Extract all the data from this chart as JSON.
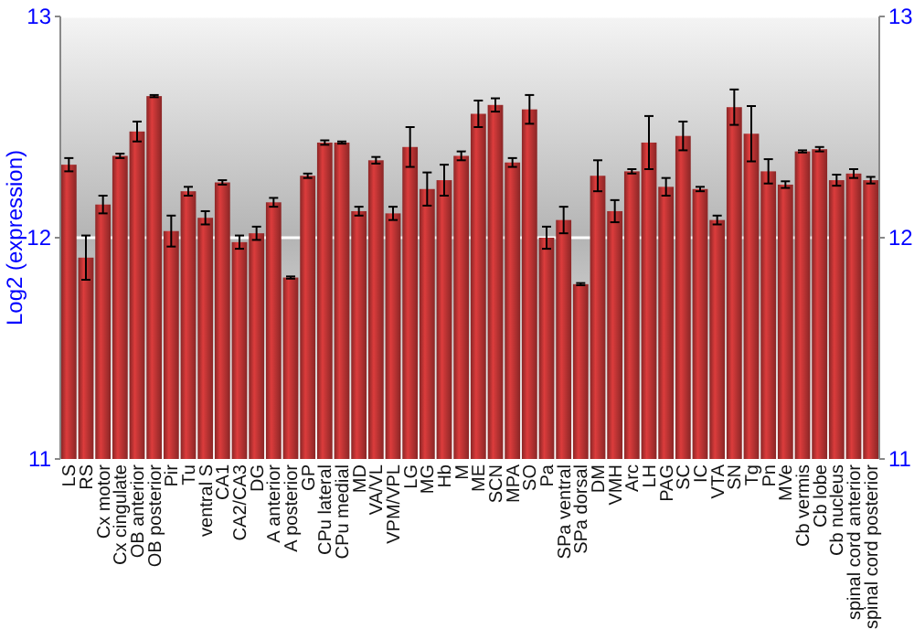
{
  "chart_data": {
    "type": "bar",
    "ylabel": "Log2 (expression)",
    "categories": [
      "LS",
      "RS",
      "Cx motor",
      "Cx cingulate",
      "OB anterior",
      "OB posterior",
      "Pir",
      "Tu",
      "ventral S",
      "CA1",
      "CA2/CA3",
      "DG",
      "A anterior",
      "A posterior",
      "GP",
      "CPu lateral",
      "CPu medial",
      "MD",
      "VA/VL",
      "VPM/VPL",
      "LG",
      "MG",
      "Hb",
      "M",
      "ME",
      "SCN",
      "MPA",
      "SO",
      "Pa",
      "SPa ventral",
      "SPa dorsal",
      "DM",
      "VMH",
      "Arc",
      "LH",
      "PAG",
      "SC",
      "IC",
      "VTA",
      "SN",
      "Tg",
      "Pn",
      "MVe",
      "Cb vermis",
      "Cb lobe",
      "Cb nucleus",
      "spinal cord anterior",
      "spinal cord posterior"
    ],
    "values": [
      12.33,
      11.91,
      12.15,
      12.37,
      12.48,
      12.64,
      12.03,
      12.21,
      12.09,
      12.25,
      11.98,
      12.02,
      12.16,
      11.82,
      12.28,
      12.43,
      12.43,
      12.12,
      12.35,
      12.11,
      12.41,
      12.22,
      12.26,
      12.37,
      12.56,
      12.6,
      12.34,
      12.58,
      12.0,
      12.08,
      11.79,
      12.28,
      12.12,
      12.3,
      12.43,
      12.23,
      12.46,
      12.22,
      12.08,
      12.59,
      12.47,
      12.3,
      12.24,
      12.39,
      12.4,
      12.26,
      12.29,
      12.26
    ],
    "errors": [
      0.03,
      0.1,
      0.04,
      0.01,
      0.045,
      0.005,
      0.07,
      0.02,
      0.03,
      0.01,
      0.03,
      0.03,
      0.02,
      0.005,
      0.01,
      0.01,
      0.005,
      0.02,
      0.015,
      0.03,
      0.09,
      0.075,
      0.07,
      0.02,
      0.06,
      0.03,
      0.02,
      0.065,
      0.05,
      0.06,
      0.005,
      0.07,
      0.05,
      0.01,
      0.12,
      0.04,
      0.065,
      0.01,
      0.02,
      0.08,
      0.125,
      0.055,
      0.015,
      0.005,
      0.01,
      0.025,
      0.02,
      0.015
    ],
    "color": "#b83232",
    "ylim": [
      11,
      13
    ],
    "yticks": [
      11,
      12,
      13
    ],
    "y2lim": [
      11,
      13
    ],
    "y2ticks": [
      11,
      12,
      13
    ],
    "grid": "y"
  }
}
